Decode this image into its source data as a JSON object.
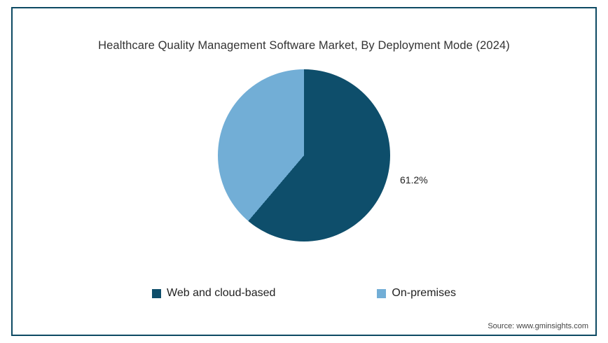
{
  "chart_data": {
    "type": "pie",
    "title": "Healthcare Quality Management Software Market, By Deployment Mode (2024)",
    "slices": [
      {
        "label": "Web and cloud-based",
        "value": 61.2,
        "color": "#0e4e6b",
        "data_label": "61.2%"
      },
      {
        "label": "On-premises",
        "value": 38.8,
        "color": "#72aed6",
        "data_label": ""
      }
    ],
    "start_angle_deg": 0,
    "direction": "clockwise",
    "legend_position": "bottom",
    "grid": false
  },
  "colors": {
    "frame_border": "#0d4a63",
    "title_text": "#333333"
  },
  "source": {
    "text": "Source: www.gminsights.com"
  }
}
